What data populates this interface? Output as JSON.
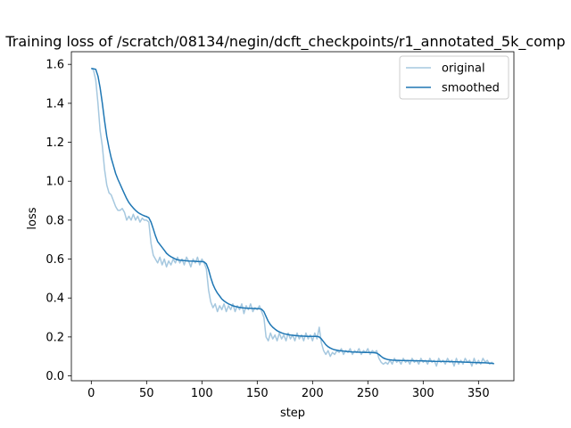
{
  "chart_data": {
    "type": "line",
    "title": "Training loss of /scratch/08134/negin/dcft_checkpoints/r1_annotated_5k_comp",
    "xlabel": "step",
    "ylabel": "loss",
    "xlim": [
      -18,
      382
    ],
    "ylim": [
      -0.025,
      1.665
    ],
    "xticks": [
      0,
      50,
      100,
      150,
      200,
      250,
      300,
      350
    ],
    "yticks": [
      0.0,
      0.2,
      0.4,
      0.6,
      0.8,
      1.0,
      1.2,
      1.4,
      1.6
    ],
    "ytick_labels": [
      "0.0",
      "0.2",
      "0.4",
      "0.6",
      "0.8",
      "1.0",
      "1.2",
      "1.4",
      "1.6"
    ],
    "grid": false,
    "legend_position": "top-right",
    "series": [
      {
        "name": "original",
        "color": "#a6c8df",
        "points": [
          [
            0,
            1.58
          ],
          [
            2,
            1.57
          ],
          [
            4,
            1.52
          ],
          [
            6,
            1.4
          ],
          [
            8,
            1.26
          ],
          [
            10,
            1.18
          ],
          [
            12,
            1.06
          ],
          [
            14,
            0.98
          ],
          [
            16,
            0.94
          ],
          [
            18,
            0.93
          ],
          [
            20,
            0.9
          ],
          [
            22,
            0.87
          ],
          [
            24,
            0.85
          ],
          [
            26,
            0.85
          ],
          [
            28,
            0.86
          ],
          [
            30,
            0.84
          ],
          [
            32,
            0.8
          ],
          [
            34,
            0.82
          ],
          [
            36,
            0.8
          ],
          [
            38,
            0.83
          ],
          [
            40,
            0.8
          ],
          [
            42,
            0.82
          ],
          [
            44,
            0.79
          ],
          [
            46,
            0.81
          ],
          [
            48,
            0.8
          ],
          [
            50,
            0.8
          ],
          [
            52,
            0.79
          ],
          [
            54,
            0.68
          ],
          [
            56,
            0.62
          ],
          [
            58,
            0.6
          ],
          [
            60,
            0.58
          ],
          [
            62,
            0.61
          ],
          [
            64,
            0.57
          ],
          [
            66,
            0.6
          ],
          [
            68,
            0.56
          ],
          [
            70,
            0.59
          ],
          [
            72,
            0.57
          ],
          [
            74,
            0.6
          ],
          [
            76,
            0.58
          ],
          [
            78,
            0.61
          ],
          [
            80,
            0.58
          ],
          [
            82,
            0.6
          ],
          [
            84,
            0.57
          ],
          [
            86,
            0.61
          ],
          [
            88,
            0.59
          ],
          [
            90,
            0.56
          ],
          [
            92,
            0.6
          ],
          [
            94,
            0.58
          ],
          [
            96,
            0.61
          ],
          [
            98,
            0.57
          ],
          [
            100,
            0.6
          ],
          [
            102,
            0.58
          ],
          [
            104,
            0.55
          ],
          [
            106,
            0.44
          ],
          [
            108,
            0.38
          ],
          [
            110,
            0.35
          ],
          [
            112,
            0.37
          ],
          [
            114,
            0.33
          ],
          [
            116,
            0.36
          ],
          [
            118,
            0.34
          ],
          [
            120,
            0.37
          ],
          [
            122,
            0.33
          ],
          [
            124,
            0.36
          ],
          [
            126,
            0.34
          ],
          [
            128,
            0.37
          ],
          [
            130,
            0.33
          ],
          [
            132,
            0.36
          ],
          [
            134,
            0.34
          ],
          [
            136,
            0.37
          ],
          [
            138,
            0.32
          ],
          [
            140,
            0.36
          ],
          [
            142,
            0.34
          ],
          [
            144,
            0.37
          ],
          [
            146,
            0.33
          ],
          [
            148,
            0.35
          ],
          [
            150,
            0.34
          ],
          [
            152,
            0.36
          ],
          [
            154,
            0.33
          ],
          [
            156,
            0.3
          ],
          [
            158,
            0.2
          ],
          [
            160,
            0.18
          ],
          [
            162,
            0.22
          ],
          [
            164,
            0.19
          ],
          [
            166,
            0.21
          ],
          [
            168,
            0.18
          ],
          [
            170,
            0.22
          ],
          [
            172,
            0.19
          ],
          [
            174,
            0.21
          ],
          [
            176,
            0.18
          ],
          [
            178,
            0.22
          ],
          [
            180,
            0.19
          ],
          [
            182,
            0.21
          ],
          [
            184,
            0.18
          ],
          [
            186,
            0.22
          ],
          [
            188,
            0.19
          ],
          [
            190,
            0.21
          ],
          [
            192,
            0.18
          ],
          [
            194,
            0.22
          ],
          [
            196,
            0.19
          ],
          [
            198,
            0.21
          ],
          [
            200,
            0.18
          ],
          [
            202,
            0.22
          ],
          [
            204,
            0.19
          ],
          [
            206,
            0.25
          ],
          [
            208,
            0.17
          ],
          [
            210,
            0.13
          ],
          [
            212,
            0.11
          ],
          [
            214,
            0.13
          ],
          [
            216,
            0.1
          ],
          [
            218,
            0.12
          ],
          [
            220,
            0.11
          ],
          [
            222,
            0.13
          ],
          [
            224,
            0.12
          ],
          [
            226,
            0.14
          ],
          [
            228,
            0.11
          ],
          [
            230,
            0.13
          ],
          [
            232,
            0.12
          ],
          [
            234,
            0.14
          ],
          [
            236,
            0.11
          ],
          [
            238,
            0.13
          ],
          [
            240,
            0.12
          ],
          [
            242,
            0.14
          ],
          [
            244,
            0.11
          ],
          [
            246,
            0.13
          ],
          [
            248,
            0.12
          ],
          [
            250,
            0.14
          ],
          [
            252,
            0.11
          ],
          [
            254,
            0.13
          ],
          [
            256,
            0.12
          ],
          [
            258,
            0.13
          ],
          [
            260,
            0.09
          ],
          [
            262,
            0.07
          ],
          [
            264,
            0.06
          ],
          [
            266,
            0.07
          ],
          [
            268,
            0.06
          ],
          [
            270,
            0.08
          ],
          [
            272,
            0.06
          ],
          [
            274,
            0.09
          ],
          [
            276,
            0.07
          ],
          [
            278,
            0.08
          ],
          [
            280,
            0.06
          ],
          [
            282,
            0.09
          ],
          [
            284,
            0.07
          ],
          [
            286,
            0.08
          ],
          [
            288,
            0.06
          ],
          [
            290,
            0.09
          ],
          [
            292,
            0.07
          ],
          [
            294,
            0.08
          ],
          [
            296,
            0.06
          ],
          [
            298,
            0.09
          ],
          [
            300,
            0.07
          ],
          [
            302,
            0.08
          ],
          [
            304,
            0.06
          ],
          [
            306,
            0.09
          ],
          [
            308,
            0.07
          ],
          [
            310,
            0.08
          ],
          [
            312,
            0.05
          ],
          [
            314,
            0.09
          ],
          [
            316,
            0.07
          ],
          [
            318,
            0.08
          ],
          [
            320,
            0.06
          ],
          [
            322,
            0.09
          ],
          [
            324,
            0.07
          ],
          [
            326,
            0.08
          ],
          [
            328,
            0.05
          ],
          [
            330,
            0.09
          ],
          [
            332,
            0.06
          ],
          [
            334,
            0.08
          ],
          [
            336,
            0.06
          ],
          [
            338,
            0.09
          ],
          [
            340,
            0.07
          ],
          [
            342,
            0.08
          ],
          [
            344,
            0.05
          ],
          [
            346,
            0.09
          ],
          [
            348,
            0.06
          ],
          [
            350,
            0.08
          ],
          [
            352,
            0.06
          ],
          [
            354,
            0.09
          ],
          [
            356,
            0.07
          ],
          [
            358,
            0.08
          ],
          [
            360,
            0.06
          ],
          [
            362,
            0.07
          ],
          [
            364,
            0.06
          ]
        ]
      },
      {
        "name": "smoothed",
        "color": "#1f77b4",
        "points": [
          [
            0,
            1.58
          ],
          [
            4,
            1.575
          ],
          [
            6,
            1.54
          ],
          [
            8,
            1.48
          ],
          [
            10,
            1.4
          ],
          [
            12,
            1.31
          ],
          [
            14,
            1.23
          ],
          [
            16,
            1.17
          ],
          [
            18,
            1.12
          ],
          [
            20,
            1.08
          ],
          [
            22,
            1.04
          ],
          [
            24,
            1.01
          ],
          [
            26,
            0.985
          ],
          [
            28,
            0.96
          ],
          [
            30,
            0.935
          ],
          [
            32,
            0.91
          ],
          [
            34,
            0.89
          ],
          [
            36,
            0.875
          ],
          [
            38,
            0.862
          ],
          [
            40,
            0.85
          ],
          [
            42,
            0.84
          ],
          [
            44,
            0.833
          ],
          [
            46,
            0.827
          ],
          [
            48,
            0.822
          ],
          [
            50,
            0.818
          ],
          [
            52,
            0.812
          ],
          [
            54,
            0.79
          ],
          [
            56,
            0.755
          ],
          [
            58,
            0.72
          ],
          [
            60,
            0.69
          ],
          [
            62,
            0.675
          ],
          [
            64,
            0.66
          ],
          [
            66,
            0.645
          ],
          [
            68,
            0.63
          ],
          [
            70,
            0.62
          ],
          [
            72,
            0.612
          ],
          [
            74,
            0.606
          ],
          [
            76,
            0.6
          ],
          [
            78,
            0.596
          ],
          [
            80,
            0.594
          ],
          [
            84,
            0.592
          ],
          [
            88,
            0.59
          ],
          [
            92,
            0.589
          ],
          [
            96,
            0.588
          ],
          [
            100,
            0.587
          ],
          [
            102,
            0.585
          ],
          [
            104,
            0.575
          ],
          [
            106,
            0.545
          ],
          [
            108,
            0.505
          ],
          [
            110,
            0.47
          ],
          [
            112,
            0.445
          ],
          [
            114,
            0.425
          ],
          [
            116,
            0.41
          ],
          [
            118,
            0.395
          ],
          [
            120,
            0.385
          ],
          [
            122,
            0.377
          ],
          [
            124,
            0.37
          ],
          [
            126,
            0.365
          ],
          [
            128,
            0.36
          ],
          [
            130,
            0.357
          ],
          [
            132,
            0.354
          ],
          [
            136,
            0.35
          ],
          [
            140,
            0.348
          ],
          [
            144,
            0.347
          ],
          [
            148,
            0.346
          ],
          [
            152,
            0.345
          ],
          [
            154,
            0.342
          ],
          [
            156,
            0.33
          ],
          [
            158,
            0.305
          ],
          [
            160,
            0.28
          ],
          [
            162,
            0.262
          ],
          [
            164,
            0.25
          ],
          [
            166,
            0.24
          ],
          [
            168,
            0.232
          ],
          [
            170,
            0.226
          ],
          [
            172,
            0.221
          ],
          [
            174,
            0.217
          ],
          [
            176,
            0.214
          ],
          [
            180,
            0.21
          ],
          [
            184,
            0.207
          ],
          [
            188,
            0.205
          ],
          [
            192,
            0.204
          ],
          [
            196,
            0.203
          ],
          [
            200,
            0.203
          ],
          [
            204,
            0.203
          ],
          [
            206,
            0.2
          ],
          [
            208,
            0.19
          ],
          [
            210,
            0.175
          ],
          [
            212,
            0.16
          ],
          [
            214,
            0.15
          ],
          [
            216,
            0.143
          ],
          [
            218,
            0.138
          ],
          [
            220,
            0.134
          ],
          [
            224,
            0.13
          ],
          [
            228,
            0.127
          ],
          [
            232,
            0.125
          ],
          [
            236,
            0.123
          ],
          [
            240,
            0.122
          ],
          [
            244,
            0.121
          ],
          [
            248,
            0.12
          ],
          [
            252,
            0.12
          ],
          [
            256,
            0.119
          ],
          [
            258,
            0.117
          ],
          [
            260,
            0.11
          ],
          [
            262,
            0.1
          ],
          [
            264,
            0.092
          ],
          [
            266,
            0.087
          ],
          [
            268,
            0.084
          ],
          [
            272,
            0.081
          ],
          [
            276,
            0.08
          ],
          [
            280,
            0.079
          ],
          [
            290,
            0.078
          ],
          [
            300,
            0.077
          ],
          [
            310,
            0.075
          ],
          [
            320,
            0.074
          ],
          [
            330,
            0.072
          ],
          [
            340,
            0.07
          ],
          [
            350,
            0.068
          ],
          [
            356,
            0.067
          ],
          [
            360,
            0.065
          ],
          [
            364,
            0.063
          ]
        ]
      }
    ]
  }
}
